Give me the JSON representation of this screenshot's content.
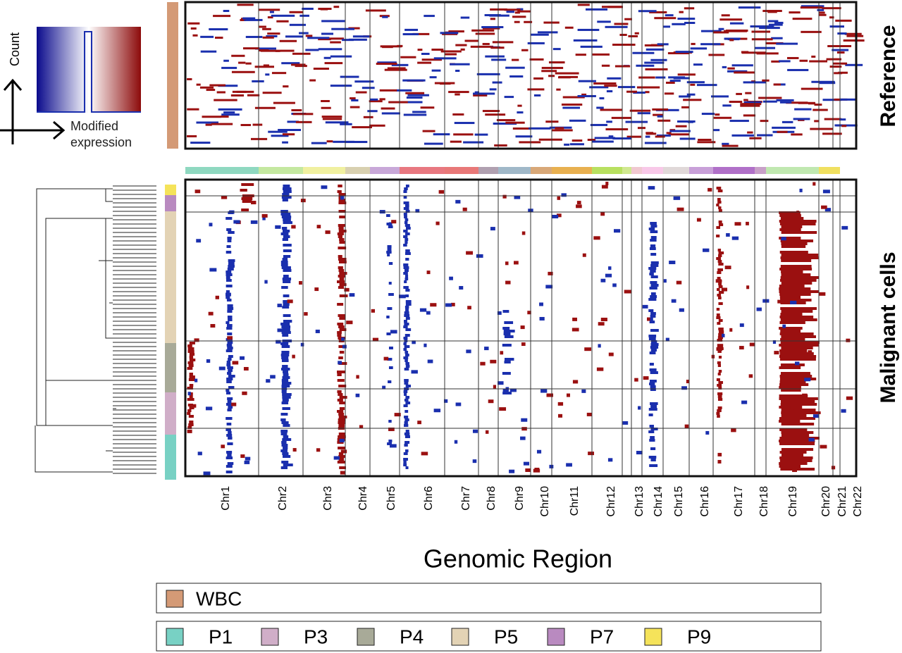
{
  "colorbar": {
    "y_label": "Count",
    "x_label": "Modified expression"
  },
  "panels": {
    "reference": "Reference",
    "malignant": "Malignant cells"
  },
  "x_axis": {
    "title": "Genomic Region",
    "chromosomes": [
      "Chr1",
      "Chr2",
      "Chr3",
      "Chr4",
      "Chr5",
      "Chr6",
      "Chr7",
      "Chr8",
      "Chr9",
      "Chr10",
      "Chr11",
      "Chr12",
      "Chr13",
      "Chr14",
      "Chr15",
      "Chr16",
      "Chr17",
      "Chr18",
      "Chr19",
      "Chr20",
      "Chr21",
      "Chr22"
    ]
  },
  "sample_legend": {
    "reference": [
      {
        "label": "WBC",
        "color": "#d49a76"
      }
    ],
    "samples": [
      {
        "label": "P1",
        "color": "#78d1c4"
      },
      {
        "label": "P3",
        "color": "#d0aec8"
      },
      {
        "label": "P4",
        "color": "#a8aa98"
      },
      {
        "label": "P5",
        "color": "#e3d3b5"
      },
      {
        "label": "P7",
        "color": "#b98ac0"
      },
      {
        "label": "P9",
        "color": "#f5e35a"
      }
    ]
  }
}
